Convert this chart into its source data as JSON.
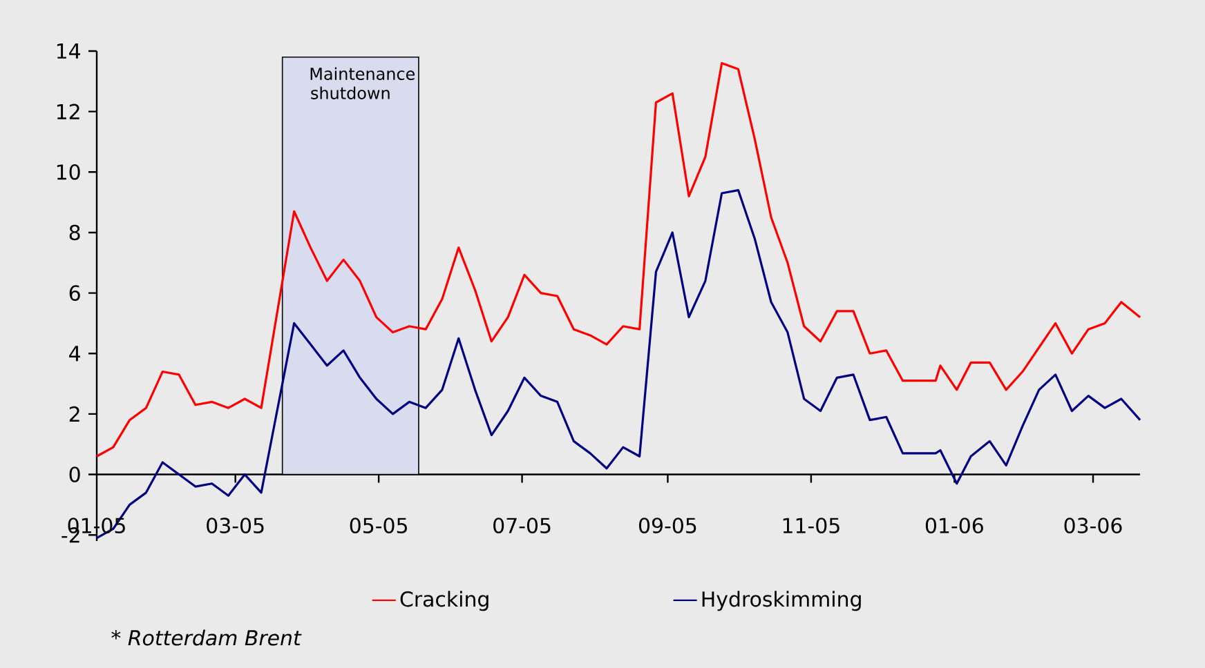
{
  "chart_data": {
    "type": "line",
    "x": [
      "2005-01-01",
      "2005-01-08",
      "2005-01-15",
      "2005-01-22",
      "2005-01-29",
      "2005-02-05",
      "2005-02-12",
      "2005-02-19",
      "2005-02-26",
      "2005-03-05",
      "2005-03-12",
      "2005-03-26",
      "2005-04-02",
      "2005-04-09",
      "2005-04-16",
      "2005-04-23",
      "2005-04-30",
      "2005-05-07",
      "2005-05-14",
      "2005-05-21",
      "2005-05-28",
      "2005-06-04",
      "2005-06-11",
      "2005-06-18",
      "2005-06-25",
      "2005-07-02",
      "2005-07-09",
      "2005-07-16",
      "2005-07-23",
      "2005-07-30",
      "2005-08-06",
      "2005-08-13",
      "2005-08-20",
      "2005-08-27",
      "2005-09-03",
      "2005-09-10",
      "2005-09-17",
      "2005-09-24",
      "2005-10-01",
      "2005-10-08",
      "2005-10-15",
      "2005-10-22",
      "2005-10-29",
      "2005-11-05",
      "2005-11-12",
      "2005-11-19",
      "2005-11-26",
      "2005-12-03",
      "2005-12-10",
      "2005-12-24",
      "2005-12-26",
      "2006-01-02",
      "2006-01-08",
      "2006-01-16",
      "2006-01-23",
      "2006-01-30",
      "2006-02-06",
      "2006-02-13",
      "2006-02-20",
      "2006-02-27",
      "2006-03-06",
      "2006-03-13",
      "2006-03-21"
    ],
    "series": [
      {
        "name": "Cracking",
        "color": "#ff0000",
        "values": [
          0.6,
          0.9,
          1.8,
          2.2,
          3.4,
          3.3,
          2.3,
          2.4,
          2.2,
          2.5,
          2.2,
          8.7,
          7.5,
          6.4,
          7.1,
          6.4,
          5.2,
          4.7,
          4.9,
          4.8,
          5.8,
          7.5,
          6.1,
          4.4,
          5.2,
          6.6,
          6.0,
          5.9,
          4.8,
          4.6,
          4.3,
          4.9,
          4.8,
          12.3,
          12.6,
          9.2,
          10.5,
          13.6,
          13.4,
          11.1,
          8.5,
          7.0,
          4.9,
          4.4,
          5.4,
          5.4,
          4.0,
          4.1,
          3.1,
          3.1,
          3.6,
          2.8,
          3.7,
          3.7,
          2.8,
          3.4,
          4.2,
          5.0,
          4.0,
          4.8,
          5.0,
          5.7,
          5.2
        ]
      },
      {
        "name": "Hydroskimming",
        "color": "#000080",
        "values": [
          -2.1,
          -1.8,
          -1.0,
          -0.6,
          0.4,
          0.0,
          -0.4,
          -0.3,
          -0.7,
          0.0,
          -0.6,
          5.0,
          4.3,
          3.6,
          4.1,
          3.2,
          2.5,
          2.0,
          2.4,
          2.2,
          2.8,
          4.5,
          2.8,
          1.3,
          2.1,
          3.2,
          2.6,
          2.4,
          1.1,
          0.7,
          0.2,
          0.9,
          0.6,
          6.7,
          8.0,
          5.2,
          6.4,
          9.3,
          9.4,
          7.8,
          5.7,
          4.7,
          2.5,
          2.1,
          3.2,
          3.3,
          1.8,
          1.9,
          0.7,
          0.7,
          0.8,
          -0.3,
          0.6,
          1.1,
          0.3,
          1.6,
          2.8,
          3.3,
          2.1,
          2.6,
          2.2,
          2.5,
          1.8
        ]
      }
    ],
    "xlim": [
      "2005-01-01",
      "2006-03-21"
    ],
    "xticks": [
      {
        "value": "2005-01-01",
        "label": "01-05"
      },
      {
        "value": "2005-03-01",
        "label": "03-05"
      },
      {
        "value": "2005-05-01",
        "label": "05-05"
      },
      {
        "value": "2005-07-01",
        "label": "07-05"
      },
      {
        "value": "2005-09-01",
        "label": "09-05"
      },
      {
        "value": "2005-11-01",
        "label": "11-05"
      },
      {
        "value": "2006-01-01",
        "label": "01-06"
      },
      {
        "value": "2006-03-01",
        "label": "03-06"
      }
    ],
    "ylim": [
      -2.2,
      14
    ],
    "yticks": [
      -2,
      0,
      2,
      4,
      6,
      8,
      10,
      12,
      14
    ],
    "bands": [
      {
        "axis": "x",
        "from": "2005-03-21",
        "to": "2005-05-18",
        "label": "Maintenance shutdown",
        "color": "#d9dcef"
      }
    ],
    "legend": "bottom",
    "annotations": [
      "* Rotterdam Brent"
    ]
  }
}
